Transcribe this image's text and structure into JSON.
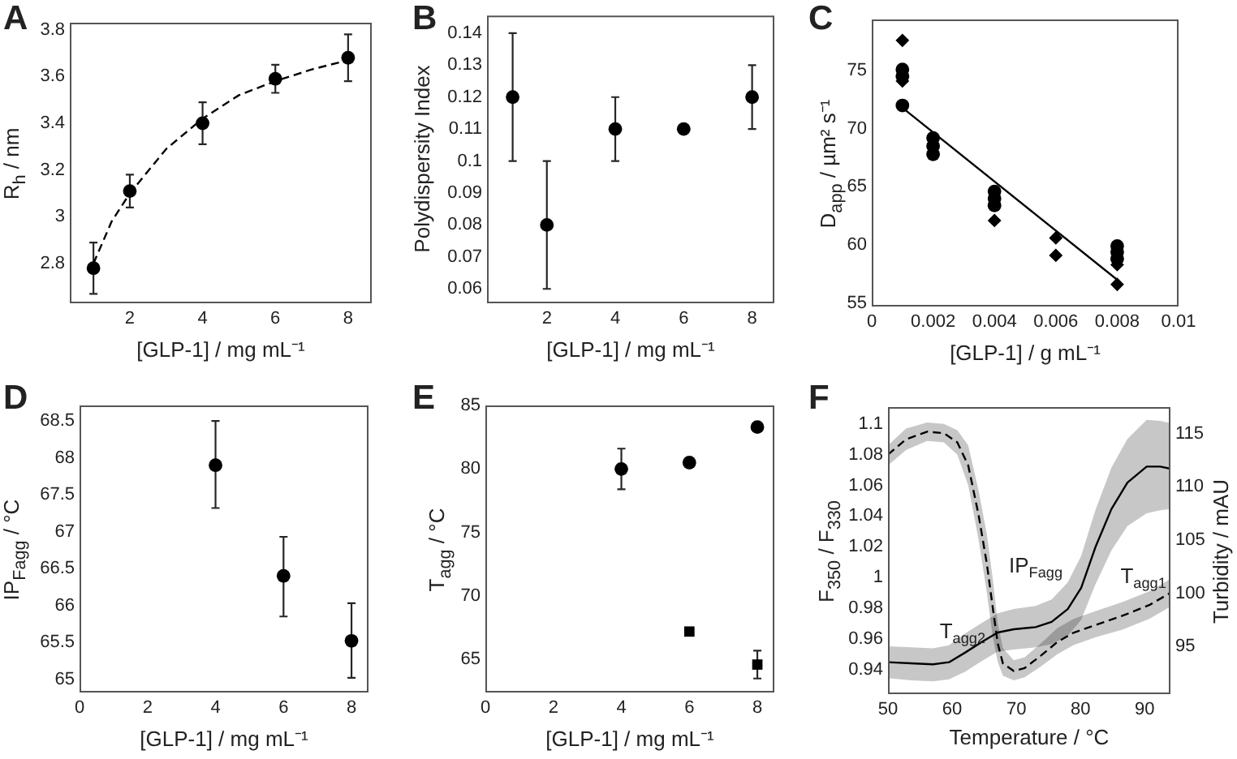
{
  "chart_data": [
    {
      "type": "scatter",
      "title": "A",
      "xlabel": "[GLP-1] / mg mL⁻¹",
      "ylabel": "R$_{h}$ / nm",
      "xlim": [
        0.35,
        8.65
      ],
      "xticks": [
        2,
        4,
        6,
        8
      ],
      "ylim": [
        2.63,
        3.83
      ],
      "yticks": [
        2.8,
        3,
        3.2,
        3.4,
        3.6,
        3.8
      ],
      "series": [
        {
          "marker": "circle",
          "color": "#000000",
          "x": [
            1,
            2,
            4,
            6,
            8
          ],
          "values": [
            2.78,
            3.11,
            3.4,
            3.59,
            3.68
          ],
          "errors": [
            [
              2.67,
              2.89
            ],
            [
              3.04,
              3.18
            ],
            [
              3.31,
              3.49
            ],
            [
              3.53,
              3.65
            ],
            [
              3.58,
              3.78
            ]
          ]
        },
        {
          "type": "line",
          "marker": "none",
          "line_style": "dashed",
          "color": "#000000",
          "x": [
            1,
            1.5,
            2,
            3,
            4,
            5,
            6,
            7,
            8
          ],
          "values": [
            2.8,
            2.98,
            3.1,
            3.29,
            3.42,
            3.52,
            3.58,
            3.63,
            3.67
          ]
        }
      ]
    },
    {
      "type": "scatter",
      "title": "B",
      "xlabel": "[GLP-1] / mg mL⁻¹",
      "ylabel": "Polydispersity Index",
      "xlim": [
        0.25,
        8.65
      ],
      "xticks": [
        2,
        4,
        6,
        8
      ],
      "ylim": [
        0.0555,
        0.1455
      ],
      "yticks": [
        0.06,
        0.07,
        0.08,
        0.09,
        0.1,
        0.11,
        0.12,
        0.13,
        0.14
      ],
      "series": [
        {
          "marker": "circle",
          "color": "#000000",
          "x": [
            1,
            2,
            4,
            6,
            8
          ],
          "values": [
            0.12,
            0.08,
            0.11,
            0.11,
            0.12
          ],
          "errors": [
            [
              0.1,
              0.14
            ],
            [
              0.06,
              0.1
            ],
            [
              0.1,
              0.12
            ],
            null,
            [
              0.11,
              0.13
            ]
          ]
        }
      ]
    },
    {
      "type": "scatter",
      "title": "C",
      "xlabel": "[GLP-1] / g mL⁻¹",
      "ylabel": "D$_{app}$ / µm² s⁻¹",
      "xlim": [
        0,
        0.01
      ],
      "xticks": [
        0,
        0.002,
        0.004,
        0.006,
        0.008,
        0.01
      ],
      "ylim": [
        54.7,
        79.4
      ],
      "yticks": [
        55,
        60,
        65,
        70,
        75
      ],
      "series": [
        {
          "marker": "circle",
          "color": "#000000",
          "x": [
            0.001,
            0.001,
            0.001,
            0.002,
            0.002,
            0.002,
            0.004,
            0.004,
            0.004,
            0.008,
            0.008,
            0.008
          ],
          "values": [
            75.1,
            74.5,
            72.0,
            69.2,
            68.5,
            67.8,
            64.6,
            64.0,
            63.4,
            59.9,
            59.4,
            58.8
          ]
        },
        {
          "marker": "diamond",
          "color": "#000000",
          "x": [
            0.001,
            0.001,
            0.004,
            0.006,
            0.006,
            0.008,
            0.008
          ],
          "values": [
            77.6,
            74.1,
            62.1,
            60.6,
            59.1,
            58.3,
            56.6
          ]
        },
        {
          "type": "line",
          "marker": "none",
          "color": "#000000",
          "x": [
            0.001,
            0.008
          ],
          "values": [
            71.8,
            57.0
          ]
        }
      ]
    },
    {
      "type": "scatter",
      "title": "D",
      "xlabel": "[GLP-1] / mg mL⁻¹",
      "ylabel": "IP$_{Fagg}$ / °C",
      "xlim": [
        0,
        8.5
      ],
      "xticks": [
        0,
        2,
        4,
        6,
        8
      ],
      "ylim": [
        64.82,
        68.71
      ],
      "yticks": [
        65,
        65.5,
        66,
        66.5,
        67,
        67.5,
        68,
        68.5
      ],
      "series": [
        {
          "marker": "circle",
          "color": "#000000",
          "x": [
            4,
            6,
            8
          ],
          "values": [
            67.9,
            66.4,
            65.52
          ],
          "errors": [
            [
              67.32,
              68.5
            ],
            [
              65.85,
              66.93
            ],
            [
              65.02,
              66.03
            ]
          ]
        }
      ]
    },
    {
      "type": "scatter",
      "title": "E",
      "xlabel": "[GLP-1] / mg mL⁻¹",
      "ylabel": "T$_{agg}$ / °C",
      "xlim": [
        0,
        8.5
      ],
      "xticks": [
        0,
        2,
        4,
        6,
        8
      ],
      "ylim": [
        62.4,
        85
      ],
      "yticks": [
        65,
        70,
        75,
        80,
        85
      ],
      "series": [
        {
          "marker": "circle",
          "color": "#000000",
          "x": [
            4,
            6,
            8
          ],
          "values": [
            80,
            80.5,
            83.3
          ],
          "errors": [
            [
              78.4,
              81.6
            ],
            null,
            null
          ]
        },
        {
          "marker": "square",
          "color": "#000000",
          "x": [
            6,
            8
          ],
          "values": [
            67.2,
            64.6
          ],
          "errors": [
            null,
            [
              63.5,
              65.7
            ]
          ]
        }
      ]
    },
    {
      "type": "line",
      "title": "F",
      "xlabel": "Temperature / °C",
      "ylabel": "F$_{350}$ / F$_{330}$",
      "y2label": "Turbidity / mAU",
      "xlim": [
        50,
        94
      ],
      "xticks": [
        50,
        60,
        70,
        80,
        90
      ],
      "ylim": [
        0.924,
        1.111
      ],
      "yticks": [
        0.94,
        0.96,
        0.98,
        1,
        1.02,
        1.04,
        1.06,
        1.08,
        1.1
      ],
      "y2lim": [
        90.5,
        117.5
      ],
      "y2ticks": [
        95,
        100,
        105,
        110,
        115
      ],
      "annotations": [
        "IP$_{Fagg}$",
        "T$_{agg1}$",
        "T$_{agg2}$"
      ],
      "series": [
        {
          "marker": "none",
          "line_style": "dashed",
          "axis": "y",
          "color": "#000000",
          "x": [
            50,
            52.8,
            56.1,
            58.7,
            60.8,
            62.5,
            64.1,
            65.4,
            66.3,
            67.1,
            67.9,
            69.6,
            71.3,
            73.8,
            76.4,
            78.9,
            82.3,
            86.5,
            90.7,
            94
          ],
          "values": [
            1.08,
            1.09,
            1.095,
            1.094,
            1.088,
            1.073,
            1.041,
            1.009,
            0.981,
            0.957,
            0.944,
            0.939,
            0.941,
            0.949,
            0.958,
            0.964,
            0.969,
            0.975,
            0.982,
            0.99
          ],
          "lower": [
            1.073,
            1.083,
            1.089,
            1.088,
            1.08,
            1.06,
            1.025,
            0.99,
            0.962,
            0.945,
            0.936,
            0.933,
            0.935,
            0.942,
            0.95,
            0.956,
            0.961,
            0.966,
            0.973,
            0.981
          ],
          "upper": [
            1.086,
            1.097,
            1.101,
            1.1,
            1.096,
            1.086,
            1.057,
            1.028,
            1.0,
            0.97,
            0.954,
            0.946,
            0.948,
            0.957,
            0.967,
            0.973,
            0.978,
            0.984,
            0.991,
            0.999
          ]
        },
        {
          "marker": "none",
          "axis": "y2",
          "color": "#000000",
          "x": [
            50,
            53.6,
            57,
            59.5,
            62,
            64.6,
            67.1,
            69.6,
            73,
            75.5,
            78,
            80.1,
            82.3,
            84.8,
            87.3,
            90.3,
            92.4,
            94
          ],
          "values": [
            93.5,
            93.4,
            93.3,
            93.5,
            94.4,
            95.4,
            96.3,
            96.6,
            96.8,
            97.3,
            98.5,
            100.5,
            104.3,
            107.9,
            110.4,
            111.9,
            111.9,
            111.7
          ],
          "lower": [
            92.0,
            91.8,
            91.7,
            91.9,
            92.6,
            93.6,
            94.5,
            94.7,
            94.9,
            95.2,
            96.0,
            97.5,
            100.8,
            104.0,
            106.3,
            107.5,
            107.8,
            107.9
          ],
          "upper": [
            95.0,
            94.9,
            94.8,
            95.1,
            96.2,
            97.2,
            98.1,
            98.5,
            98.8,
            99.4,
            101.0,
            103.5,
            107.8,
            111.8,
            114.5,
            116.3,
            116.2,
            116.0
          ]
        }
      ]
    }
  ]
}
